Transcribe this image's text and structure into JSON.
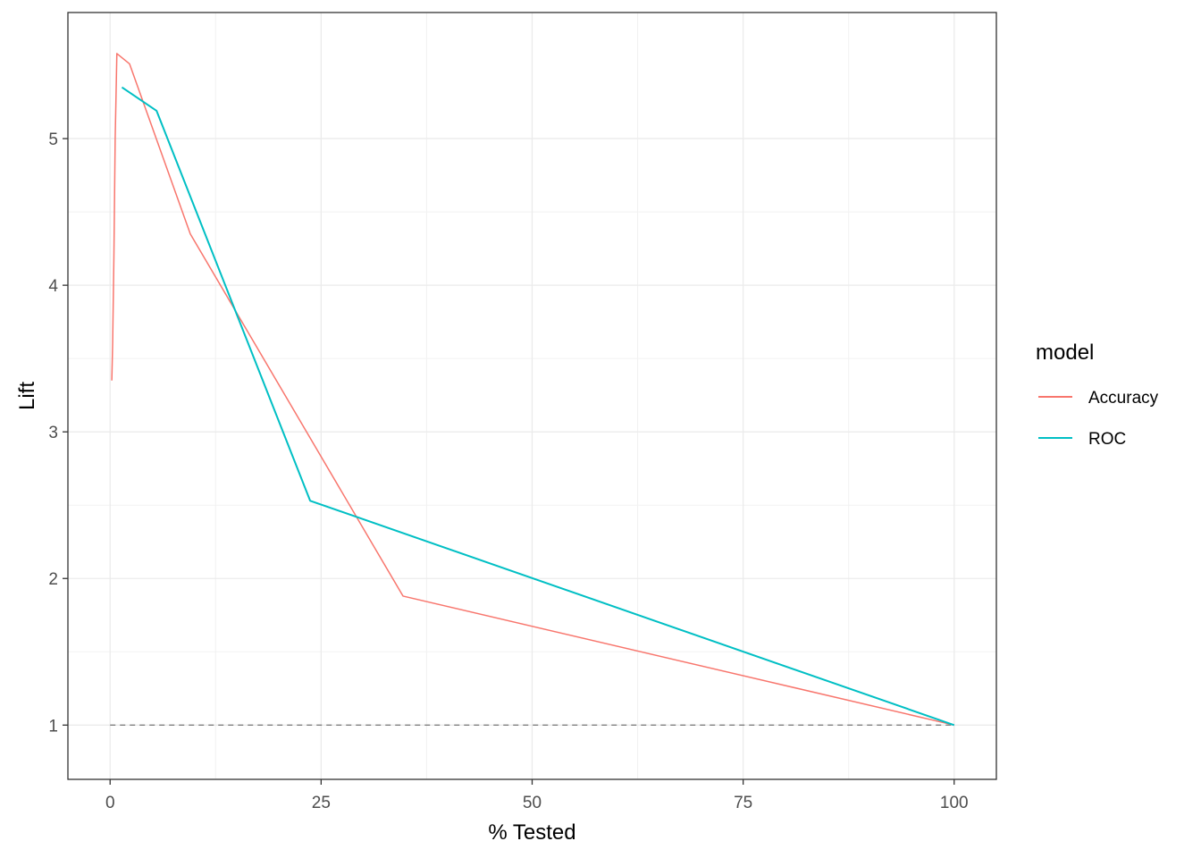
{
  "chart_data": {
    "type": "line",
    "title": "",
    "xlabel": "% Tested",
    "ylabel": "Lift",
    "xlim": [
      -5,
      105
    ],
    "ylim": [
      0.63,
      5.86
    ],
    "x_ticks": [
      0,
      25,
      50,
      75,
      100
    ],
    "y_ticks": [
      1,
      2,
      3,
      4,
      5
    ],
    "grid": true,
    "legend_title": "model",
    "legend_position": "right",
    "series": [
      {
        "name": "Accuracy",
        "color": "#F8766D",
        "points": [
          [
            0.2,
            3.35
          ],
          [
            0.3,
            3.6
          ],
          [
            0.45,
            4.2
          ],
          [
            0.6,
            5.0
          ],
          [
            0.8,
            5.58
          ],
          [
            2.3,
            5.51
          ],
          [
            9.5,
            4.35
          ],
          [
            34.7,
            1.88
          ],
          [
            100,
            1.0
          ]
        ]
      },
      {
        "name": "ROC",
        "color": "#00BFC4",
        "points": [
          [
            1.4,
            5.35
          ],
          [
            5.5,
            5.19
          ],
          [
            23.7,
            2.53
          ],
          [
            100,
            1.0
          ]
        ]
      }
    ],
    "reference_line": {
      "y": 1,
      "x_range": [
        0,
        100
      ],
      "style": "dashed",
      "color": "#808080"
    }
  }
}
